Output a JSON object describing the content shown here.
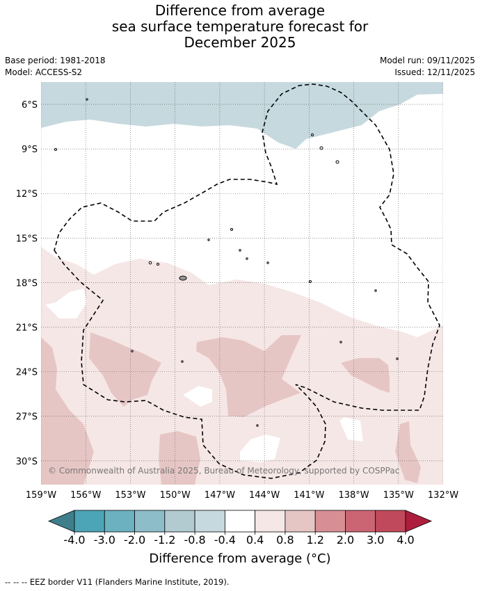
{
  "title_lines": [
    "Difference from average",
    "sea surface temperature forecast for",
    "December 2025"
  ],
  "meta": {
    "base_period": "Base period: 1981-2018",
    "model": "Model: ACCESS-S2",
    "model_run": "Model run: 09/11/2025",
    "issued": "Issued: 12/11/2025"
  },
  "map": {
    "lon_range": [
      -159,
      -132
    ],
    "lat_range": [
      -31.6,
      -4.5
    ],
    "lat_ticks": [
      {
        "value": -6,
        "label": "6°S"
      },
      {
        "value": -9,
        "label": "9°S"
      },
      {
        "value": -12,
        "label": "12°S"
      },
      {
        "value": -15,
        "label": "15°S"
      },
      {
        "value": -18,
        "label": "18°S"
      },
      {
        "value": -21,
        "label": "21°S"
      },
      {
        "value": -24,
        "label": "24°S"
      },
      {
        "value": -27,
        "label": "27°S"
      },
      {
        "value": -30,
        "label": "30°S"
      }
    ],
    "lon_ticks": [
      {
        "value": -159,
        "label": "159°W"
      },
      {
        "value": -156,
        "label": "156°W"
      },
      {
        "value": -153,
        "label": "153°W"
      },
      {
        "value": -150,
        "label": "150°W"
      },
      {
        "value": -147,
        "label": "147°W"
      },
      {
        "value": -144,
        "label": "144°W"
      },
      {
        "value": -141,
        "label": "141°W"
      },
      {
        "value": -138,
        "label": "138°W"
      },
      {
        "value": -135,
        "label": "135°W"
      },
      {
        "value": -132,
        "label": "132°W"
      }
    ],
    "copyright": "© Commonwealth of Australia 2025, Bureau of Meteorology, supported by COSPPac",
    "colors": {
      "cool_band": "#c6d9de",
      "warm_light": "#f5e7e6",
      "warm_medium": "#e6c6c4",
      "eez_line": "#000000"
    }
  },
  "colorbar": {
    "title": "Difference from average (°C)",
    "labels": [
      "-4.0",
      "-3.0",
      "-2.0",
      "-1.2",
      "-0.8",
      "-0.4",
      "0.4",
      "0.8",
      "1.2",
      "2.0",
      "3.0",
      "4.0"
    ],
    "colors": [
      "#3f7f8c",
      "#4ba5b6",
      "#6cb1bf",
      "#8dbdc8",
      "#b2cbd1",
      "#c6d9de",
      "#ffffff",
      "#f5e7e6",
      "#e6c6c4",
      "#d78f95",
      "#cb6573",
      "#c04a5b",
      "#ae1e3c"
    ]
  },
  "footnote": "--  --  -- EEZ border V11 (Flanders Marine Institute, 2019)."
}
